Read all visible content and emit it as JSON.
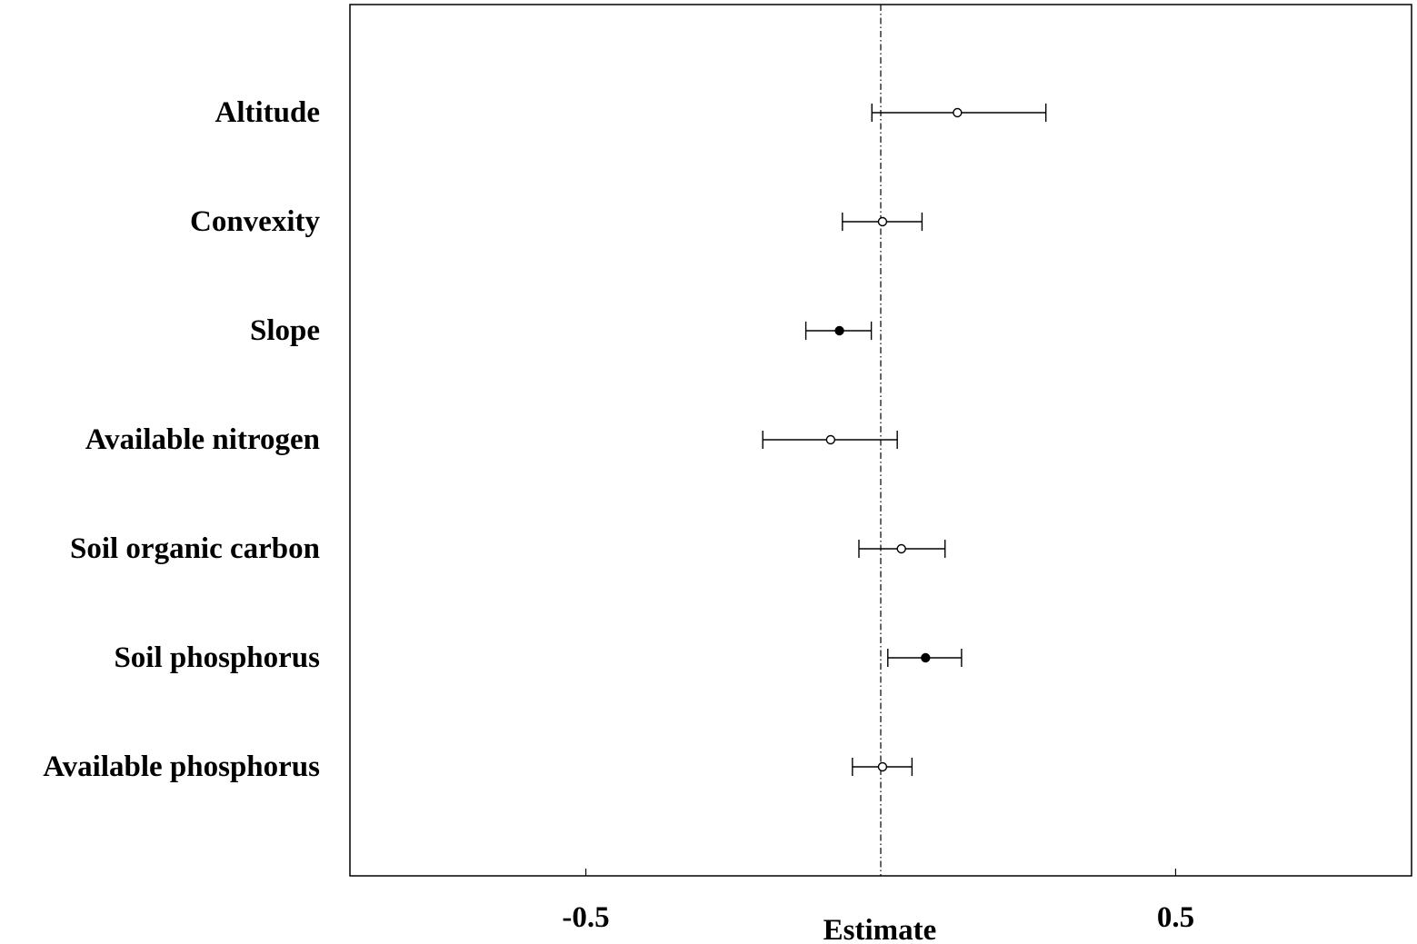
{
  "chart_data": {
    "type": "forest",
    "xlabel": "Estimate",
    "xticks": [
      -0.5,
      0.5
    ],
    "xtick_labels": [
      "-0.5",
      "0.5"
    ],
    "xlim": [
      -0.9,
      0.9
    ],
    "reference_line": 0,
    "rows": [
      {
        "label": "Altitude",
        "estimate": 0.13,
        "lower": -0.015,
        "upper": 0.28,
        "significant": false
      },
      {
        "label": "Convexity",
        "estimate": 0.003,
        "lower": -0.065,
        "upper": 0.07,
        "significant": false
      },
      {
        "label": "Slope",
        "estimate": -0.07,
        "lower": -0.127,
        "upper": -0.016,
        "significant": true
      },
      {
        "label": "Available nitrogen",
        "estimate": -0.085,
        "lower": -0.2,
        "upper": 0.028,
        "significant": false
      },
      {
        "label": "Soil organic carbon",
        "estimate": 0.035,
        "lower": -0.037,
        "upper": 0.109,
        "significant": false
      },
      {
        "label": "Soil phosphorus",
        "estimate": 0.076,
        "lower": 0.012,
        "upper": 0.137,
        "significant": true
      },
      {
        "label": "Available phosphorus",
        "estimate": 0.003,
        "lower": -0.048,
        "upper": 0.053,
        "significant": false
      }
    ]
  }
}
